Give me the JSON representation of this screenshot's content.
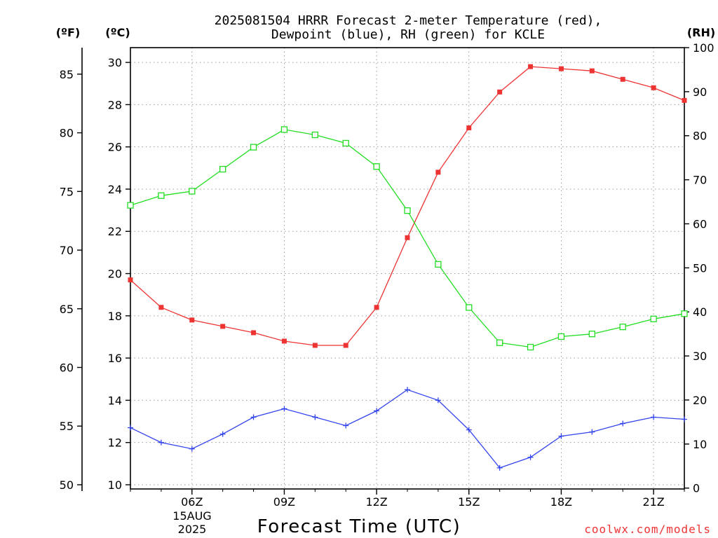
{
  "chart_data": {
    "type": "line",
    "title": "2025081504 HRRR Forecast 2-meter Temperature (red),",
    "subtitle": "Dewpoint (blue), RH (green) for KCLE",
    "xlabel": "Forecast Time (UTC)",
    "date_label": [
      "15AUG",
      "2025"
    ],
    "watermark": "coolwx.com/models",
    "axes": {
      "fahrenheit": {
        "label": "(ºF)",
        "ticks": [
          50,
          55,
          60,
          65,
          70,
          75,
          80,
          85
        ]
      },
      "celsius": {
        "label": "(ºC)",
        "ticks": [
          10,
          12,
          14,
          16,
          18,
          20,
          22,
          24,
          26,
          28,
          30
        ],
        "ylim": [
          9.8,
          30.7
        ]
      },
      "rh": {
        "label": "(RH)",
        "ticks": [
          0,
          10,
          20,
          30,
          40,
          50,
          60,
          70,
          80,
          90,
          100
        ],
        "ylim": [
          -0.2,
          100
        ]
      }
    },
    "x_ticks": [
      {
        "hour": 6,
        "label": "06Z"
      },
      {
        "hour": 9,
        "label": "09Z"
      },
      {
        "hour": 12,
        "label": "12Z"
      },
      {
        "hour": 15,
        "label": "15Z"
      },
      {
        "hour": 18,
        "label": "18Z"
      },
      {
        "hour": 21,
        "label": "21Z"
      }
    ],
    "xlim": [
      4,
      22
    ],
    "x": [
      4,
      5,
      6,
      7,
      8,
      9,
      10,
      11,
      12,
      13,
      14,
      15,
      16,
      17,
      18,
      19,
      20,
      21,
      22
    ],
    "grid": true,
    "series": [
      {
        "name": "Temperature",
        "unit": "C",
        "color": "#ee3333",
        "marker": "filled-square",
        "values": [
          19.7,
          18.4,
          17.8,
          17.5,
          17.2,
          16.8,
          16.6,
          16.6,
          18.4,
          21.7,
          24.8,
          26.9,
          28.6,
          29.8,
          29.7,
          29.6,
          29.2,
          28.8,
          28.2
        ]
      },
      {
        "name": "Dewpoint",
        "unit": "C",
        "color": "#3344ee",
        "marker": "plus",
        "values": [
          12.7,
          12.0,
          11.7,
          12.4,
          13.2,
          13.6,
          13.2,
          12.8,
          13.5,
          14.5,
          14.0,
          12.6,
          10.8,
          11.3,
          12.3,
          12.5,
          12.9,
          13.2,
          13.1
        ]
      },
      {
        "name": "RH",
        "unit": "%",
        "color": "#22dd22",
        "marker": "open-square",
        "values": [
          64.2,
          66.4,
          67.4,
          72.4,
          77.4,
          81.4,
          80.2,
          78.3,
          73.0,
          63.0,
          50.8,
          41.0,
          33.0,
          32.0,
          34.4,
          35.0,
          36.6,
          38.4,
          39.6
        ]
      }
    ]
  }
}
